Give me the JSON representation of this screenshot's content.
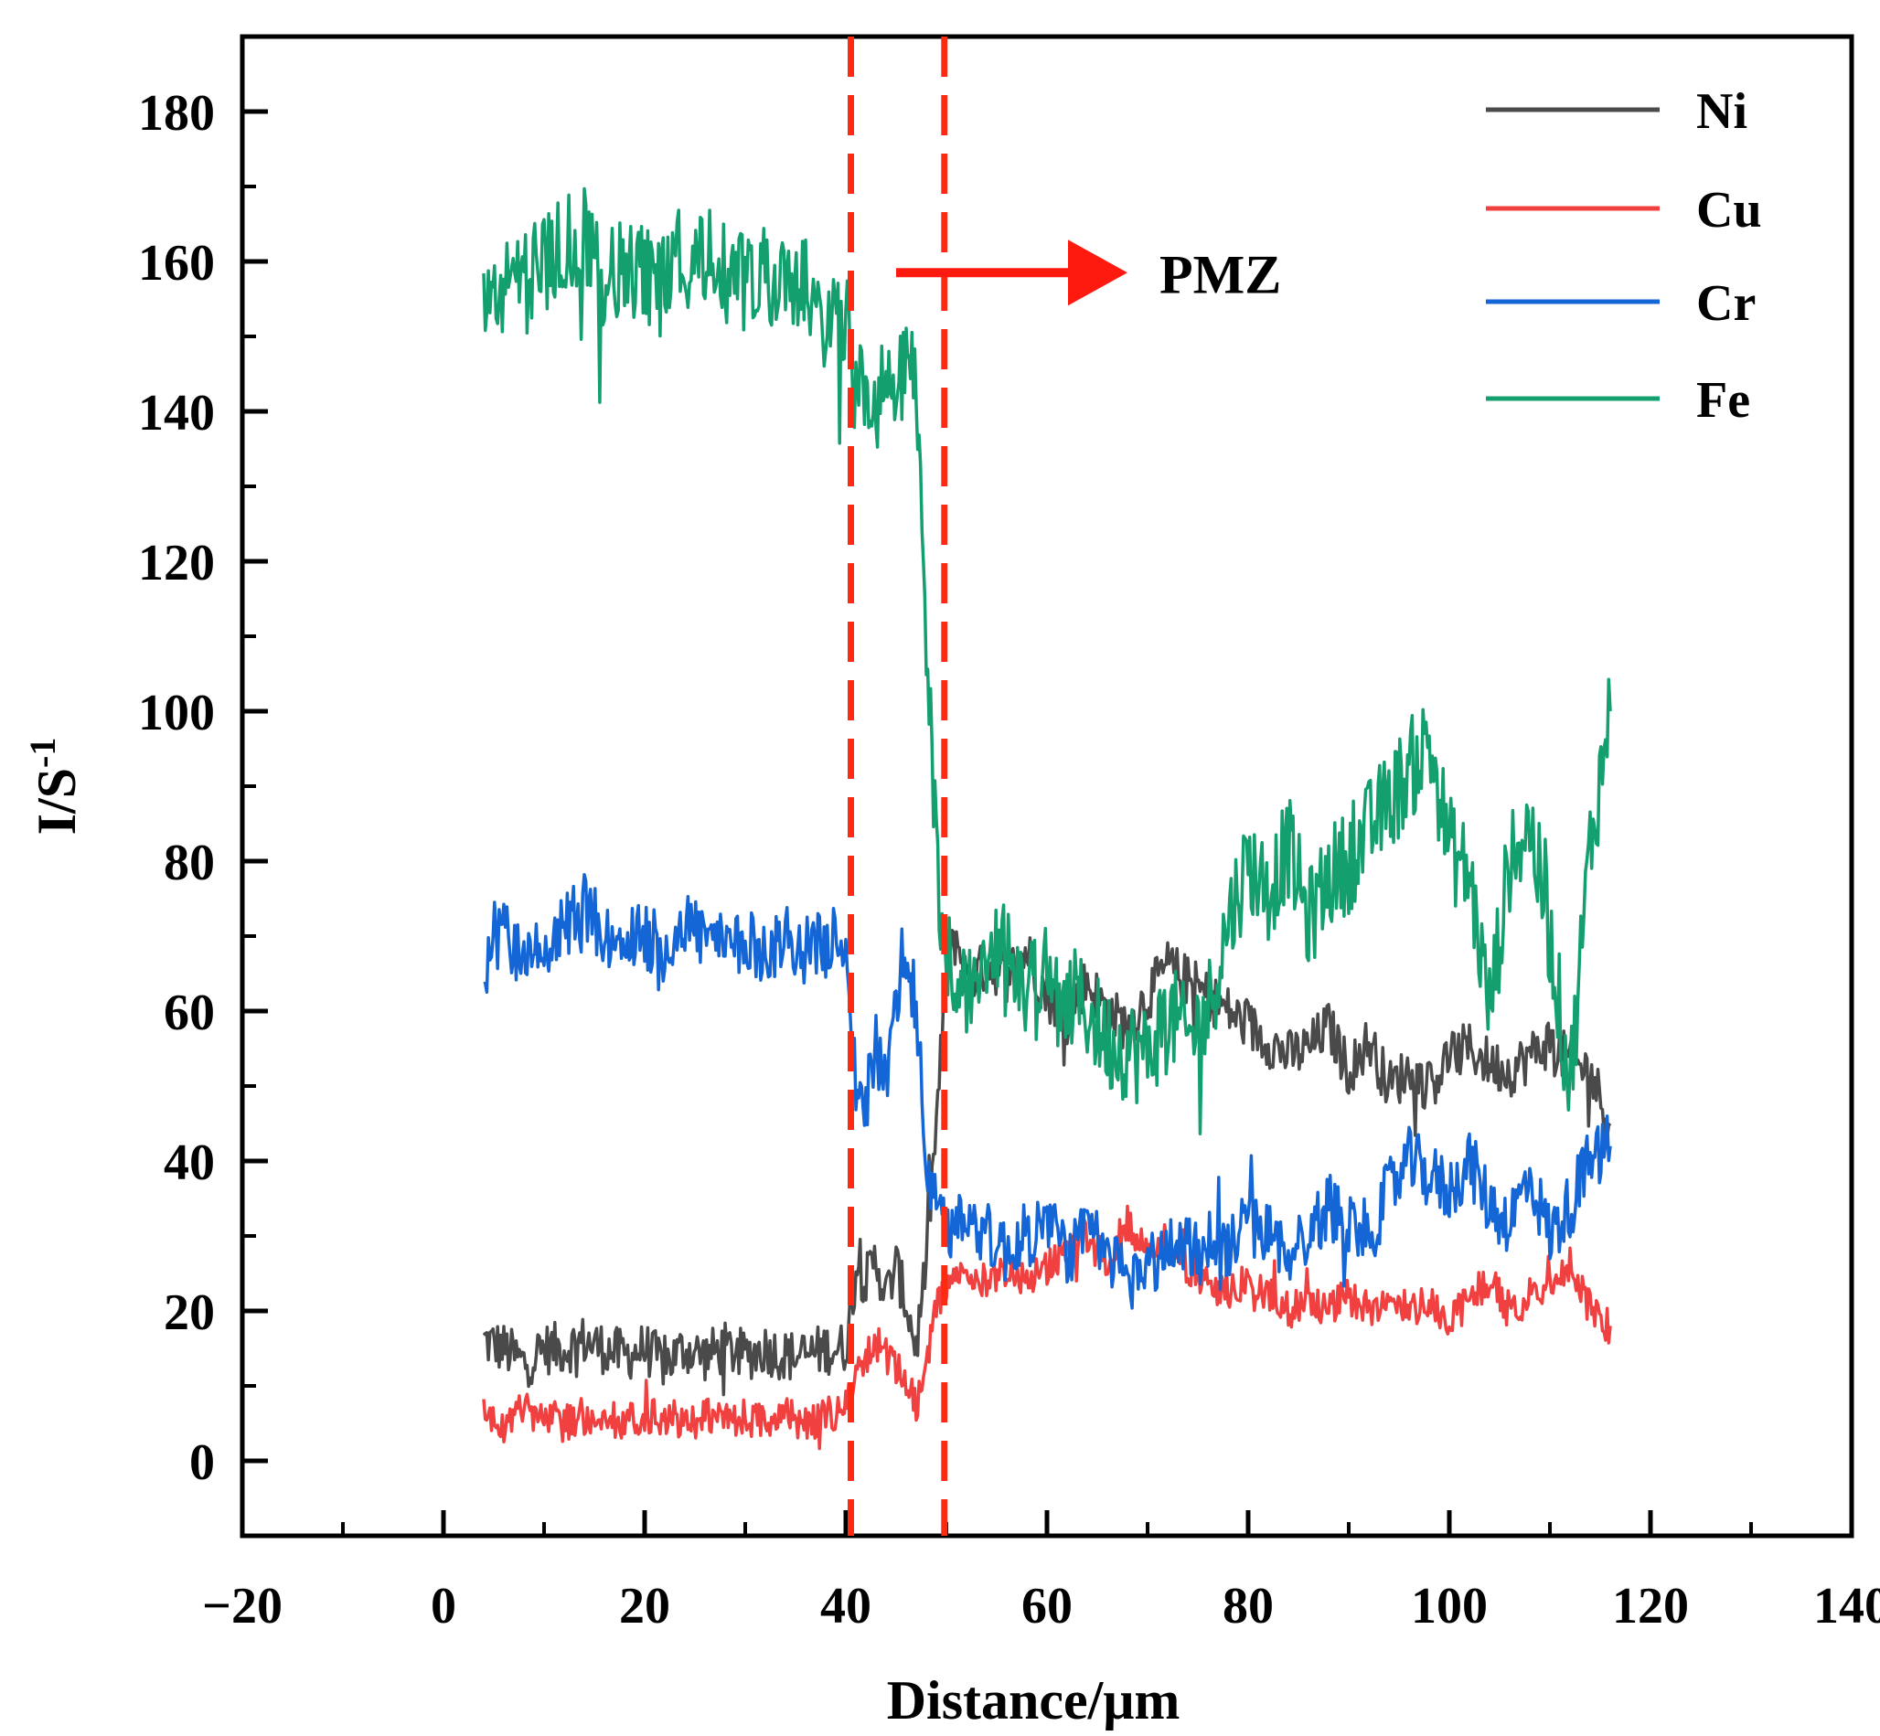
{
  "chart_data": {
    "type": "line",
    "xlabel": "Distance/μm",
    "ylabel_base": "I/S",
    "ylabel_sup": "-1",
    "xlim": [
      -20,
      140
    ],
    "ylim": [
      -10,
      190
    ],
    "xticks": [
      -20,
      0,
      20,
      40,
      60,
      80,
      100,
      120,
      140
    ],
    "xtick_labels": [
      "−20",
      "0",
      "20",
      "40",
      "60",
      "80",
      "100",
      "120",
      "140"
    ],
    "yticks": [
      0,
      20,
      40,
      60,
      80,
      100,
      120,
      140,
      160,
      180
    ],
    "ytick_labels": [
      "0",
      "20",
      "40",
      "60",
      "80",
      "100",
      "120",
      "140",
      "160",
      "180"
    ],
    "legend_position": "top-right",
    "vlines": [
      40.5,
      49.8
    ],
    "vline_color": "#ff2a10",
    "annotation": {
      "text": "PMZ",
      "arrow_from": [
        45,
        158.5
      ],
      "arrow_to": [
        68,
        158.5
      ],
      "color": "#ff1a10"
    },
    "series": [
      {
        "name": "Ni",
        "color": "#4a4a4a",
        "x": [
          4,
          6,
          8,
          10,
          12,
          14,
          16,
          18,
          20,
          22,
          24,
          26,
          28,
          30,
          32,
          34,
          36,
          38,
          40,
          41,
          42,
          43,
          44,
          45,
          46,
          47,
          48,
          49,
          50,
          51,
          52,
          54,
          56,
          58,
          60,
          62,
          64,
          66,
          68,
          70,
          72,
          74,
          76,
          78,
          80,
          82,
          84,
          86,
          88,
          90,
          92,
          94,
          96,
          98,
          100,
          102,
          104,
          106,
          108,
          110,
          112,
          114,
          116
        ],
        "values": [
          16,
          15,
          13,
          15,
          15,
          16,
          15,
          14,
          15,
          13,
          15,
          14,
          15,
          14,
          15,
          14,
          14,
          15,
          15,
          26,
          24,
          27,
          22,
          26,
          21,
          15,
          27,
          45,
          65,
          70,
          64,
          66,
          65,
          68,
          62,
          60,
          64,
          60,
          58,
          62,
          66,
          64,
          62,
          60,
          58,
          56,
          54,
          55,
          58,
          52,
          56,
          50,
          52,
          50,
          54,
          55,
          53,
          52,
          54,
          56,
          53,
          52,
          45
        ]
      },
      {
        "name": "Cu",
        "color": "#f04040",
        "x": [
          4,
          6,
          8,
          10,
          12,
          14,
          16,
          18,
          20,
          22,
          24,
          26,
          28,
          30,
          32,
          34,
          36,
          38,
          40,
          41,
          42,
          43,
          44,
          45,
          46,
          47,
          48,
          49,
          50,
          51,
          52,
          54,
          56,
          58,
          60,
          62,
          64,
          66,
          68,
          70,
          72,
          74,
          76,
          78,
          80,
          82,
          84,
          86,
          88,
          90,
          92,
          94,
          96,
          98,
          100,
          102,
          104,
          106,
          108,
          110,
          112,
          114,
          116
        ],
        "values": [
          6,
          5,
          7,
          6,
          5,
          6,
          6,
          5,
          6,
          6,
          5,
          6,
          5,
          6,
          5,
          6,
          5,
          6,
          7,
          12,
          14,
          16,
          14,
          12,
          11,
          7,
          13,
          20,
          24,
          26,
          24,
          24,
          26,
          24,
          26,
          28,
          30,
          26,
          32,
          28,
          30,
          26,
          24,
          22,
          24,
          22,
          20,
          22,
          20,
          22,
          20,
          22,
          20,
          22,
          18,
          22,
          24,
          20,
          22,
          24,
          26,
          20,
          18
        ]
      },
      {
        "name": "Cr",
        "color": "#1466d6",
        "x": [
          4,
          6,
          8,
          10,
          12,
          14,
          16,
          18,
          20,
          22,
          24,
          26,
          28,
          30,
          32,
          34,
          36,
          38,
          40,
          41,
          42,
          43,
          44,
          45,
          46,
          47,
          48,
          49,
          50,
          51,
          52,
          54,
          56,
          58,
          60,
          62,
          64,
          66,
          68,
          70,
          72,
          74,
          76,
          78,
          80,
          82,
          84,
          86,
          88,
          90,
          92,
          94,
          96,
          98,
          100,
          102,
          104,
          106,
          108,
          110,
          112,
          114,
          116
        ],
        "values": [
          66,
          70,
          67,
          68,
          71,
          74,
          70,
          69,
          70,
          68,
          72,
          70,
          68,
          69,
          68,
          70,
          68,
          69,
          70,
          50,
          48,
          55,
          50,
          62,
          66,
          60,
          40,
          33,
          30,
          32,
          34,
          30,
          28,
          30,
          32,
          28,
          30,
          28,
          24,
          26,
          28,
          30,
          26,
          28,
          32,
          30,
          28,
          30,
          34,
          32,
          30,
          36,
          40,
          38,
          36,
          40,
          34,
          32,
          38,
          30,
          34,
          40,
          42
        ]
      },
      {
        "name": "Fe",
        "color": "#14a06e",
        "x": [
          4,
          6,
          8,
          10,
          12,
          14,
          16,
          18,
          20,
          22,
          24,
          26,
          28,
          30,
          32,
          34,
          36,
          38,
          40,
          41,
          42,
          43,
          44,
          45,
          46,
          47,
          48,
          49,
          50,
          51,
          52,
          54,
          56,
          58,
          60,
          62,
          64,
          66,
          68,
          70,
          72,
          74,
          76,
          78,
          80,
          82,
          84,
          86,
          88,
          90,
          92,
          94,
          96,
          98,
          100,
          102,
          104,
          106,
          108,
          110,
          112,
          114,
          116
        ],
        "values": [
          158,
          155,
          158,
          160,
          162,
          164,
          156,
          160,
          158,
          156,
          160,
          162,
          158,
          157,
          160,
          155,
          158,
          152,
          153,
          140,
          145,
          138,
          146,
          140,
          148,
          145,
          110,
          80,
          68,
          66,
          64,
          66,
          68,
          64,
          62,
          62,
          60,
          56,
          55,
          54,
          60,
          56,
          60,
          72,
          80,
          76,
          82,
          72,
          78,
          80,
          84,
          88,
          92,
          96,
          82,
          78,
          60,
          80,
          85,
          70,
          50,
          82,
          100
        ]
      }
    ]
  }
}
